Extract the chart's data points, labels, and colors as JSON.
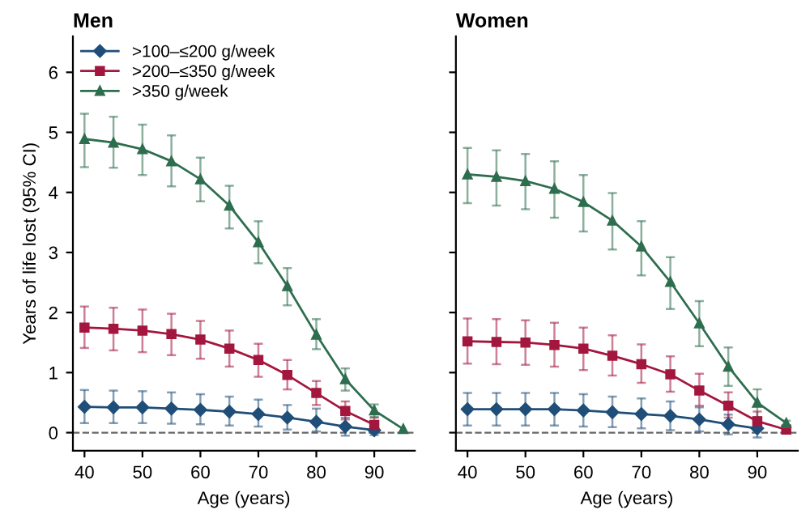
{
  "chart_data": [
    {
      "type": "line",
      "title": "Men",
      "xlabel": "Age (years)",
      "ylabel": "Years of life lost (95% CI)",
      "x": [
        40,
        45,
        50,
        55,
        60,
        65,
        70,
        75,
        80,
        85,
        90,
        95
      ],
      "xlim": [
        38,
        97
      ],
      "xticks": [
        40,
        50,
        60,
        70,
        80,
        90
      ],
      "ylim": [
        -0.3,
        6.6
      ],
      "yticks": [
        0,
        1,
        2,
        3,
        4,
        5,
        6
      ],
      "legend": "top left",
      "grid": false,
      "ref_lines": [
        {
          "axis": "y",
          "value": 0,
          "line_style": "dashed",
          "color": "#666666"
        }
      ],
      "series": [
        {
          "name": ">100–≤200 g/week",
          "color": "#1f4e79",
          "marker": "diamond",
          "values": [
            0.43,
            0.42,
            0.42,
            0.4,
            0.38,
            0.35,
            0.31,
            0.25,
            0.18,
            0.1,
            0.04,
            null
          ],
          "errors": [
            [
              0.16,
              0.71
            ],
            [
              0.16,
              0.7
            ],
            [
              0.16,
              0.69
            ],
            [
              0.15,
              0.67
            ],
            [
              0.14,
              0.64
            ],
            [
              0.12,
              0.6
            ],
            [
              0.1,
              0.55
            ],
            [
              0.05,
              0.46
            ],
            [
              0.02,
              0.4
            ],
            [
              -0.05,
              0.25
            ],
            [
              -0.04,
              0.12
            ],
            null
          ]
        },
        {
          "name": ">200–≤350 g/week",
          "color": "#a3173f",
          "marker": "square",
          "values": [
            1.75,
            1.73,
            1.7,
            1.64,
            1.55,
            1.4,
            1.21,
            0.96,
            0.66,
            0.36,
            0.13,
            null
          ],
          "errors": [
            [
              1.41,
              2.1
            ],
            [
              1.37,
              2.08
            ],
            [
              1.34,
              2.05
            ],
            [
              1.29,
              1.98
            ],
            [
              1.23,
              1.86
            ],
            [
              1.1,
              1.7
            ],
            [
              0.93,
              1.48
            ],
            [
              0.72,
              1.21
            ],
            [
              0.46,
              0.86
            ],
            [
              0.22,
              0.52
            ],
            [
              0.03,
              0.25
            ],
            null
          ]
        },
        {
          "name": ">350 g/week",
          "color": "#2e6e4f",
          "marker": "triangle",
          "values": [
            4.89,
            4.83,
            4.72,
            4.52,
            4.22,
            3.78,
            3.17,
            2.44,
            1.63,
            0.89,
            0.37,
            0.06
          ],
          "errors": [
            [
              4.42,
              5.31
            ],
            [
              4.41,
              5.26
            ],
            [
              4.29,
              5.13
            ],
            [
              4.1,
              4.95
            ],
            [
              3.85,
              4.58
            ],
            [
              3.4,
              4.11
            ],
            [
              2.82,
              3.52
            ],
            [
              2.12,
              2.74
            ],
            [
              1.39,
              1.89
            ],
            [
              0.7,
              1.07
            ],
            [
              0.26,
              0.47
            ],
            null
          ]
        }
      ]
    },
    {
      "type": "line",
      "title": "Women",
      "xlabel": "Age (years)",
      "x": [
        40,
        45,
        50,
        55,
        60,
        65,
        70,
        75,
        80,
        85,
        90,
        95
      ],
      "xlim": [
        38,
        97
      ],
      "xticks": [
        40,
        50,
        60,
        70,
        80,
        90
      ],
      "ylim": [
        -0.3,
        6.6
      ],
      "yticks": [
        0,
        1,
        2,
        3,
        4,
        5,
        6
      ],
      "tick_labels": "x",
      "grid": false,
      "ref_lines": [
        {
          "axis": "y",
          "value": 0,
          "line_style": "dashed",
          "color": "#666666"
        }
      ],
      "series": [
        {
          "color": "#1f4e79",
          "marker": "diamond",
          "values": [
            0.39,
            0.39,
            0.39,
            0.39,
            0.37,
            0.34,
            0.31,
            0.28,
            0.22,
            0.14,
            0.07,
            null
          ],
          "errors": [
            [
              0.12,
              0.66
            ],
            [
              0.12,
              0.66
            ],
            [
              0.12,
              0.66
            ],
            [
              0.12,
              0.66
            ],
            [
              0.1,
              0.64
            ],
            [
              0.09,
              0.6
            ],
            [
              0.07,
              0.57
            ],
            [
              0.04,
              0.52
            ],
            [
              0.02,
              0.42
            ],
            [
              -0.03,
              0.3
            ],
            [
              -0.08,
              0.2
            ],
            null
          ]
        },
        {
          "color": "#a3173f",
          "marker": "square",
          "values": [
            1.52,
            1.51,
            1.5,
            1.46,
            1.4,
            1.28,
            1.14,
            0.97,
            0.7,
            0.45,
            0.19,
            0.05
          ],
          "errors": [
            [
              1.15,
              1.9
            ],
            [
              1.14,
              1.89
            ],
            [
              1.13,
              1.87
            ],
            [
              1.1,
              1.83
            ],
            [
              1.04,
              1.75
            ],
            [
              0.95,
              1.62
            ],
            [
              0.83,
              1.47
            ],
            [
              0.68,
              1.27
            ],
            [
              0.45,
              0.98
            ],
            [
              0.25,
              0.67
            ],
            [
              0.05,
              0.35
            ],
            null
          ]
        },
        {
          "color": "#2e6e4f",
          "marker": "triangle",
          "values": [
            4.3,
            4.26,
            4.19,
            4.06,
            3.84,
            3.53,
            3.1,
            2.51,
            1.82,
            1.1,
            0.5,
            0.16
          ],
          "errors": [
            [
              3.82,
              4.74
            ],
            [
              3.78,
              4.7
            ],
            [
              3.72,
              4.64
            ],
            [
              3.58,
              4.52
            ],
            [
              3.35,
              4.29
            ],
            [
              3.05,
              3.99
            ],
            [
              2.62,
              3.52
            ],
            [
              2.06,
              2.92
            ],
            [
              1.44,
              2.19
            ],
            [
              0.78,
              1.42
            ],
            [
              0.26,
              0.72
            ],
            [
              0.05,
              0.2
            ]
          ]
        }
      ]
    }
  ]
}
